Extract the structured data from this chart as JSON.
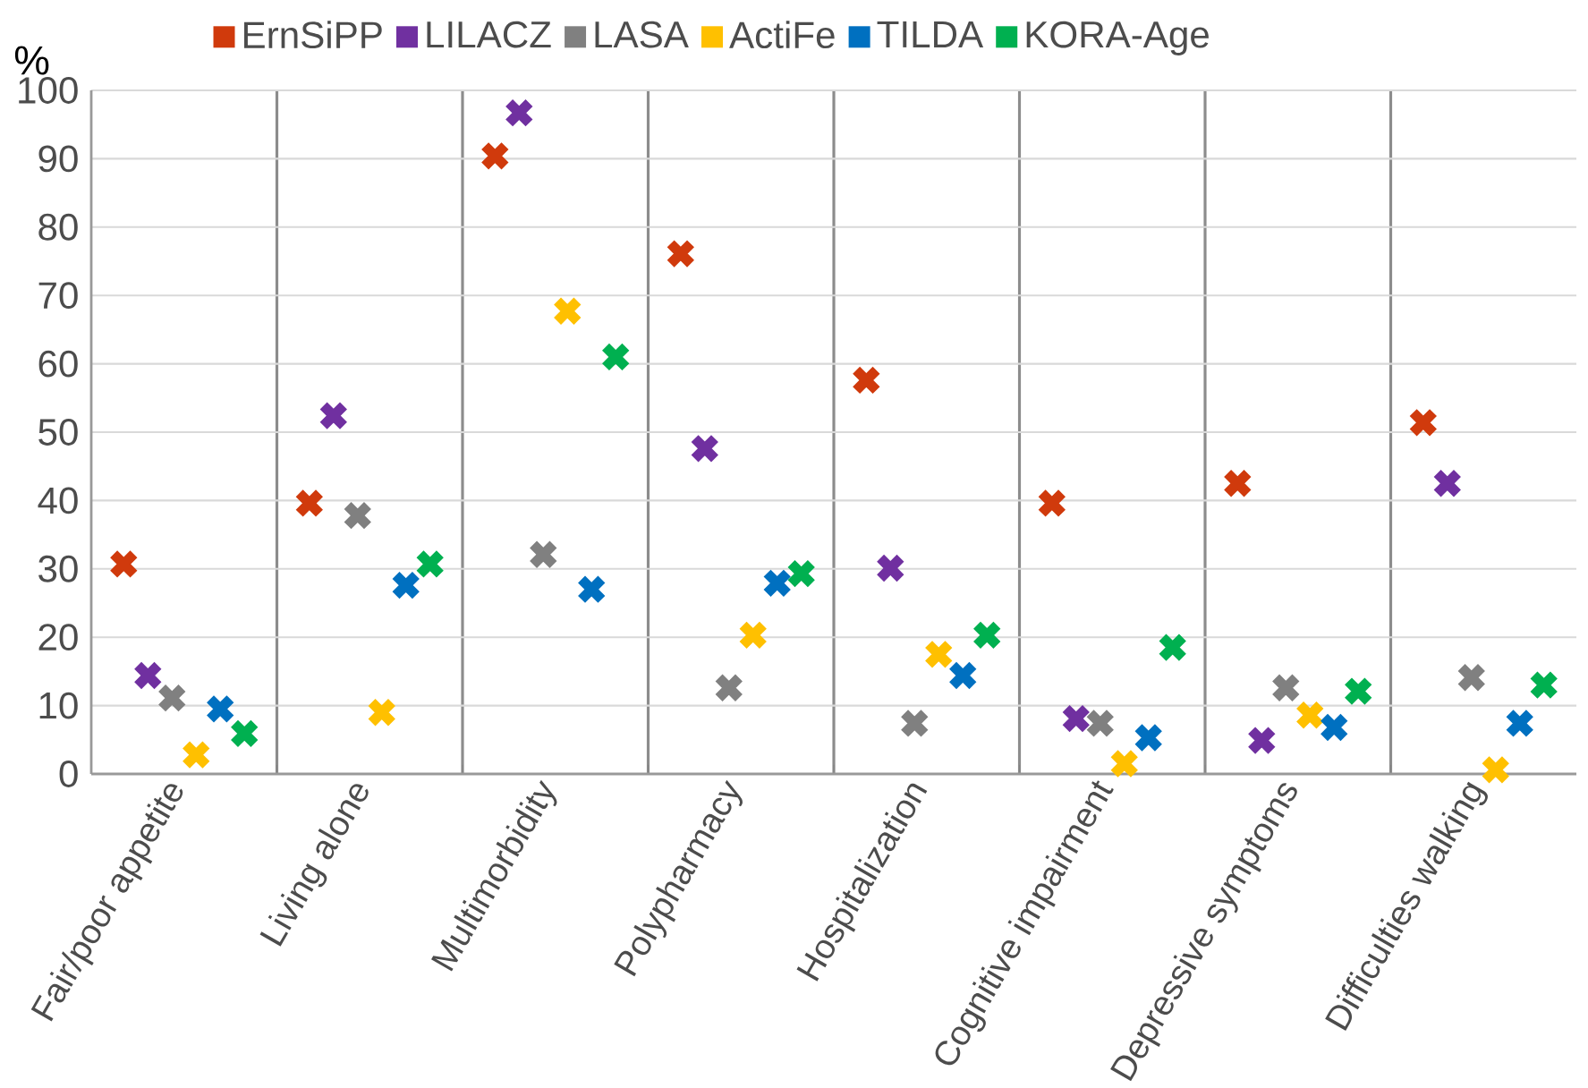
{
  "chart_data": {
    "type": "scatter",
    "ylabel": "%",
    "categories": [
      "Fair/poor appetite",
      "Living alone",
      "Multimorbidity",
      "Polypharmacy",
      "Hospitalization",
      "Cognitive impairment",
      "Depressive symptoms",
      "Difficulties walking"
    ],
    "series": [
      {
        "name": "ErnSiPP",
        "color": "#d03a0c",
        "values": [
          30.7,
          39.6,
          90.4,
          76.1,
          57.6,
          39.6,
          42.5,
          51.4
        ]
      },
      {
        "name": "LILACZ",
        "color": "#7030a0",
        "values": [
          14.4,
          52.4,
          96.7,
          47.6,
          30.1,
          8.1,
          4.9,
          42.5
        ]
      },
      {
        "name": "LASA",
        "color": "#808080",
        "values": [
          11.1,
          37.8,
          32.1,
          12.6,
          7.4,
          7.4,
          12.6,
          14.1
        ]
      },
      {
        "name": "ActiFe",
        "color": "#ffc000",
        "values": [
          2.8,
          9.0,
          67.7,
          20.3,
          17.5,
          1.5,
          8.6,
          0.6
        ]
      },
      {
        "name": "TILDA",
        "color": "#0070c0",
        "values": [
          9.5,
          27.6,
          27.0,
          27.9,
          14.4,
          5.3,
          6.8,
          7.4
        ]
      },
      {
        "name": "KORA-Age",
        "color": "#00b050",
        "values": [
          5.9,
          30.7,
          61.0,
          29.3,
          20.3,
          18.5,
          12.1,
          13.0
        ]
      }
    ],
    "ylim": [
      0,
      100
    ],
    "yticks": [
      0,
      10,
      20,
      30,
      40,
      50,
      60,
      70,
      80,
      90,
      100
    ],
    "grid": "y",
    "legend": "top",
    "marker": "cross"
  }
}
